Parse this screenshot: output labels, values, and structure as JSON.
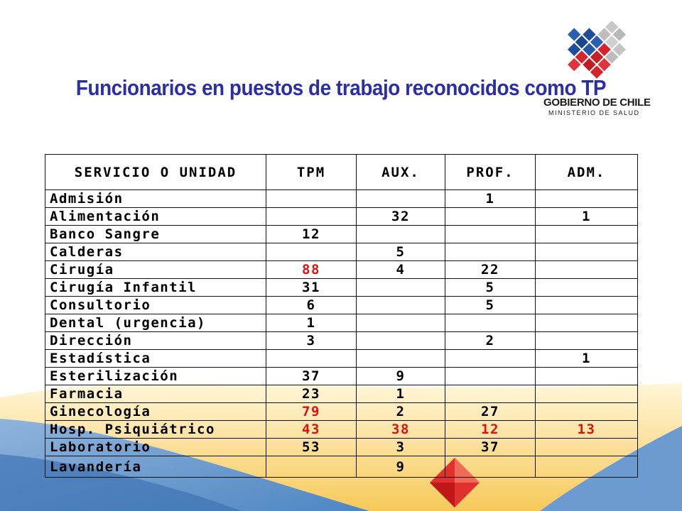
{
  "title": "Funcionarios en puestos de trabajo reconocidos como TP",
  "logo": {
    "line1": "GOBIERNO DE CHILE",
    "line2": "MINISTERIO DE SALUD"
  },
  "colors": {
    "title": "#2b2fa6",
    "highlight": "#e01010",
    "logo_blue": "#1f4e9c",
    "logo_red": "#d8232a"
  },
  "table": {
    "headers": [
      "SERVICIO O UNIDAD",
      "TPM",
      "AUX.",
      "PROF.",
      "ADM."
    ],
    "rows": [
      {
        "name": "Admisión",
        "tpm": "",
        "aux": "",
        "prof": "1",
        "adm": ""
      },
      {
        "name": "Alimentación",
        "tpm": "",
        "aux": "32",
        "prof": "",
        "adm": "1"
      },
      {
        "name": "Banco Sangre",
        "tpm": "12",
        "aux": "",
        "prof": "",
        "adm": ""
      },
      {
        "name": "Calderas",
        "tpm": "",
        "aux": "5",
        "prof": "",
        "adm": ""
      },
      {
        "name": "Cirugía",
        "tpm": "88",
        "aux": "4",
        "prof": "22",
        "adm": "",
        "red": [
          "tpm"
        ]
      },
      {
        "name": "Cirugía Infantil",
        "tpm": "31",
        "aux": "",
        "prof": "5",
        "adm": ""
      },
      {
        "name": "Consultorio",
        "tpm": "6",
        "aux": "",
        "prof": "5",
        "adm": ""
      },
      {
        "name": "Dental (urgencia)",
        "tpm": "1",
        "aux": "",
        "prof": "",
        "adm": ""
      },
      {
        "name": "Dirección",
        "tpm": "3",
        "aux": "",
        "prof": "2",
        "adm": ""
      },
      {
        "name": "Estadística",
        "tpm": "",
        "aux": "",
        "prof": "",
        "adm": "1"
      },
      {
        "name": "Esterilización",
        "tpm": "37",
        "aux": "9",
        "prof": "",
        "adm": ""
      },
      {
        "name": "Farmacia",
        "tpm": "23",
        "aux": "1",
        "prof": "",
        "adm": ""
      },
      {
        "name": "Ginecología",
        "tpm": "79",
        "aux": "2",
        "prof": "27",
        "adm": "",
        "red": [
          "tpm"
        ]
      },
      {
        "name": "Hosp.  Psiquiátrico",
        "tpm": "43",
        "aux": "38",
        "prof": "12",
        "adm": "13",
        "red": [
          "tpm",
          "aux",
          "prof",
          "adm"
        ]
      },
      {
        "name": "Laboratorio",
        "tpm": "53",
        "aux": "3",
        "prof": "37",
        "adm": ""
      },
      {
        "name": "Lavandería",
        "tpm": "",
        "aux": "9",
        "prof": "",
        "adm": ""
      }
    ]
  }
}
